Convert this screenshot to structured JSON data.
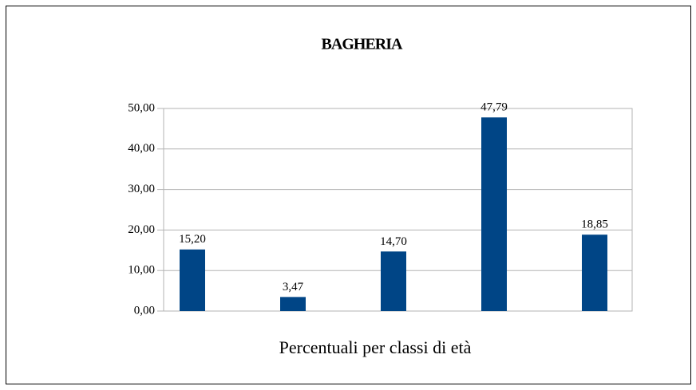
{
  "chart_data": {
    "type": "bar",
    "title": "BAGHERIA",
    "x_label": "Percentuali per classi di età",
    "categories": [
      null,
      null,
      null,
      null,
      null
    ],
    "values": [
      15.2,
      3.47,
      14.7,
      47.79,
      18.85
    ],
    "value_labels": [
      "15,20",
      "3,47",
      "14,70",
      "47,79",
      "18,85"
    ],
    "color": "#004586",
    "ylim": [
      0,
      50
    ],
    "yticks": [
      {
        "value": 0,
        "label": "0,00"
      },
      {
        "value": 10,
        "label": "10,00"
      },
      {
        "value": 20,
        "label": "20,00"
      },
      {
        "value": 30,
        "label": "30,00"
      },
      {
        "value": 40,
        "label": "40,00"
      },
      {
        "value": 50,
        "label": "50,00"
      }
    ],
    "grid": true
  }
}
